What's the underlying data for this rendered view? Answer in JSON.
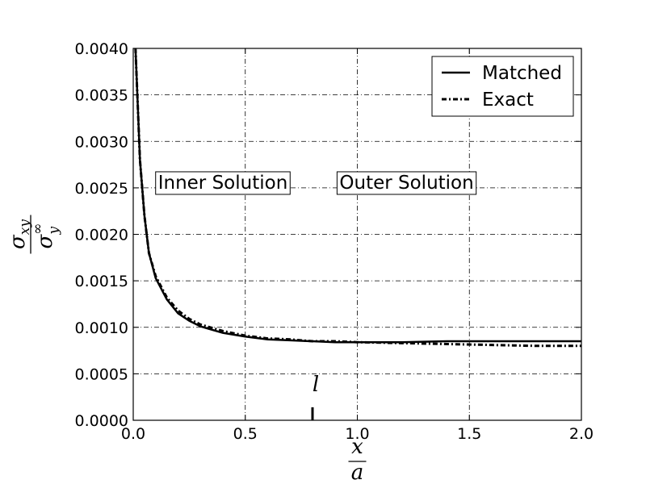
{
  "chart_data": {
    "type": "line",
    "title": "",
    "xlim": [
      0.0,
      2.0
    ],
    "ylim": [
      0.0,
      0.004
    ],
    "x_ticks": [
      "0.0",
      "0.5",
      "1.0",
      "1.5",
      "2.0"
    ],
    "y_ticks": [
      "0.0000",
      "0.0005",
      "0.0010",
      "0.0015",
      "0.0020",
      "0.0025",
      "0.0030",
      "0.0035",
      "0.0040"
    ],
    "grid": true,
    "legend_position": "top-right",
    "xlabel": {
      "numerator": "x",
      "denominator": "a"
    },
    "ylabel": {
      "numerator_base": "σ",
      "numerator_sub": "xy",
      "denominator_base": "σ",
      "denominator_sub": "y",
      "denominator_sup": "∞"
    },
    "series": [
      {
        "name": "Matched",
        "style": "solid",
        "color": "#000000",
        "x": [
          0.01,
          0.02,
          0.03,
          0.05,
          0.07,
          0.1,
          0.15,
          0.2,
          0.25,
          0.3,
          0.4,
          0.5,
          0.6,
          0.7,
          0.8,
          0.9,
          1.0,
          1.2,
          1.4,
          1.6,
          1.8,
          2.0
        ],
        "y": [
          0.004,
          0.0034,
          0.0028,
          0.0022,
          0.0018,
          0.00153,
          0.0013,
          0.00115,
          0.00107,
          0.00101,
          0.00094,
          0.0009,
          0.00087,
          0.00086,
          0.00085,
          0.00084,
          0.00084,
          0.00084,
          0.00085,
          0.00085,
          0.00085,
          0.00085
        ]
      },
      {
        "name": "Exact",
        "style": "dashdot",
        "color": "#000000",
        "x": [
          0.01,
          0.02,
          0.03,
          0.05,
          0.07,
          0.1,
          0.15,
          0.2,
          0.25,
          0.3,
          0.4,
          0.5,
          0.6,
          0.7,
          0.8,
          0.9,
          1.0,
          1.2,
          1.4,
          1.6,
          1.8,
          2.0
        ],
        "y": [
          0.004,
          0.0034,
          0.0028,
          0.0022,
          0.0018,
          0.00155,
          0.00132,
          0.00118,
          0.00109,
          0.00103,
          0.00096,
          0.00091,
          0.00088,
          0.00087,
          0.00085,
          0.00085,
          0.00084,
          0.00083,
          0.00082,
          0.00081,
          0.0008,
          0.0008
        ]
      }
    ],
    "annotations": [
      {
        "text": "Inner Solution",
        "x": 0.4,
        "y": 0.00256,
        "boxed": true
      },
      {
        "text": "Outer Solution",
        "x": 1.22,
        "y": 0.00256,
        "boxed": true
      },
      {
        "text": "l",
        "x": 0.8,
        "y": 0.00033,
        "italic": true,
        "marker_top": 0.00014
      }
    ]
  }
}
